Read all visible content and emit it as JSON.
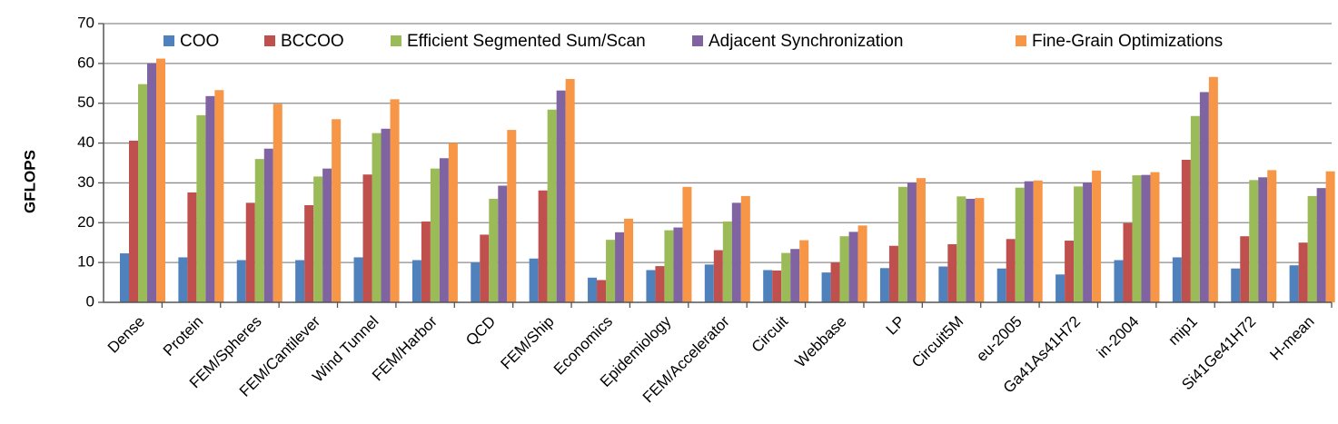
{
  "chart_data": {
    "type": "bar",
    "title": "",
    "xlabel": "",
    "ylabel": "GFLOPS",
    "ylim": [
      0,
      70
    ],
    "yticks": [
      0,
      10,
      20,
      30,
      40,
      50,
      60,
      70
    ],
    "grid": true,
    "legend_position": "top",
    "categories": [
      "Dense",
      "Protein",
      "FEM/Spheres",
      "FEM/Cantilever",
      "Wind Tunnel",
      "FEM/Harbor",
      "QCD",
      "FEM/Ship",
      "Economics",
      "Epidemiology",
      "FEM/Accelerator",
      "Circuit",
      "Webbase",
      "LP",
      "Circuit5M",
      "eu-2005",
      "Ga41As41H72",
      "in-2004",
      "mip1",
      "Si41Ge41H72",
      "H-mean"
    ],
    "series": [
      {
        "name": "COO",
        "color": "#4F81BD",
        "values": [
          12.3,
          11.3,
          10.6,
          10.6,
          11.3,
          10.6,
          10.0,
          11.0,
          6.2,
          8.1,
          9.5,
          8.1,
          7.5,
          8.6,
          9.0,
          8.5,
          7.0,
          10.6,
          11.3,
          8.5,
          9.3
        ]
      },
      {
        "name": "BCCOO",
        "color": "#C0504D",
        "values": [
          40.6,
          27.6,
          25.0,
          24.4,
          32.1,
          20.3,
          17.0,
          28.1,
          5.6,
          9.1,
          13.1,
          8.0,
          10.0,
          14.2,
          14.6,
          15.9,
          15.5,
          19.9,
          35.8,
          16.6,
          15.0
        ]
      },
      {
        "name": "Efficient Segmented Sum/Scan",
        "color": "#9BBB59",
        "values": [
          54.8,
          47.0,
          36.0,
          31.6,
          42.5,
          33.6,
          26.0,
          48.4,
          15.7,
          18.1,
          20.3,
          12.4,
          16.6,
          29.0,
          26.6,
          28.8,
          29.1,
          31.9,
          46.8,
          30.7,
          26.7
        ]
      },
      {
        "name": "Adjacent Synchronization",
        "color": "#8064A2",
        "values": [
          60.0,
          51.8,
          38.6,
          33.6,
          43.6,
          36.2,
          29.3,
          53.2,
          17.6,
          18.8,
          25.0,
          13.4,
          17.7,
          30.1,
          26.0,
          30.4,
          30.1,
          32.0,
          52.8,
          31.4,
          28.7
        ]
      },
      {
        "name": "Fine-Grain Optimizations",
        "color": "#F79646",
        "values": [
          61.2,
          53.3,
          49.8,
          46.0,
          51.0,
          40.0,
          43.3,
          56.1,
          21.0,
          29.0,
          26.7,
          15.6,
          19.3,
          31.2,
          26.2,
          30.6,
          33.1,
          32.7,
          56.6,
          33.2,
          32.9
        ]
      }
    ]
  }
}
